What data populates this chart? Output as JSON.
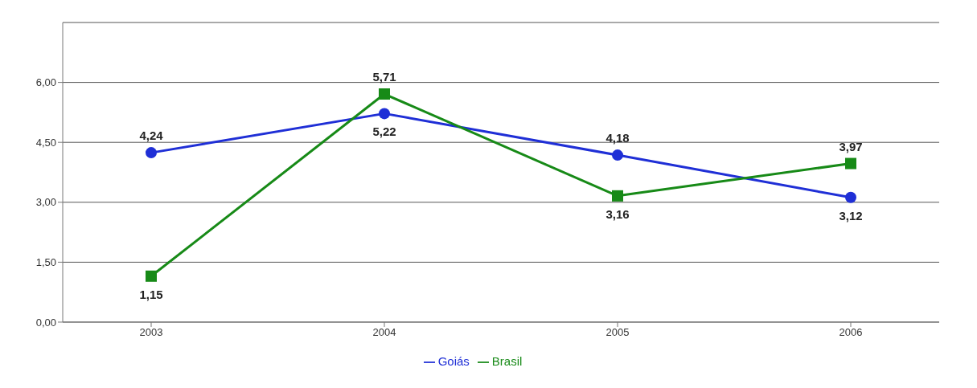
{
  "chart_data": {
    "type": "line",
    "categories": [
      "2003",
      "2004",
      "2005",
      "2006"
    ],
    "series": [
      {
        "name": "Goiás",
        "color": "#1f2fd6",
        "marker": "circle",
        "values": [
          4.24,
          5.22,
          4.18,
          3.12
        ],
        "value_labels": [
          "4,24",
          "5,22",
          "4,18",
          "3,12"
        ]
      },
      {
        "name": "Brasil",
        "color": "#178a17",
        "marker": "square",
        "values": [
          1.15,
          5.71,
          3.16,
          3.97
        ],
        "value_labels": [
          "1,15",
          "5,71",
          "3,16",
          "3,97"
        ]
      }
    ],
    "ylim": [
      0,
      7.5
    ],
    "yticks": [
      {
        "value": 0,
        "label": "0,00"
      },
      {
        "value": 1.5,
        "label": "1,50"
      },
      {
        "value": 3,
        "label": "3,00"
      },
      {
        "value": 4.5,
        "label": "4,50"
      },
      {
        "value": 6,
        "label": "6,00"
      }
    ],
    "grid": "y",
    "legend": "bottom"
  }
}
